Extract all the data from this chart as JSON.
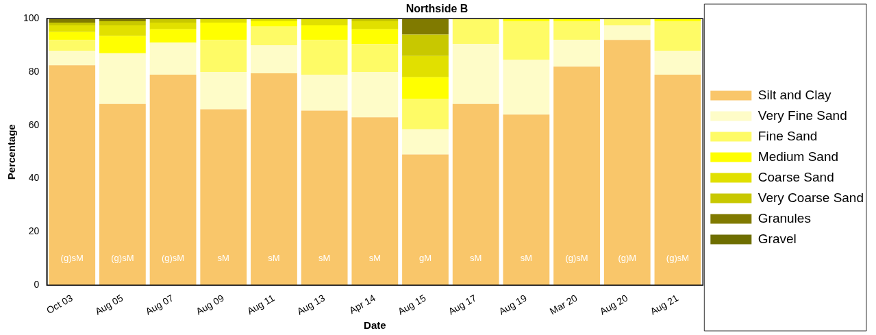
{
  "chart_data": {
    "type": "bar",
    "title": "Northside B",
    "xlabel": "Date",
    "ylabel": "Percentage",
    "categories": [
      "Oct 03",
      "Aug 05",
      "Aug 07",
      "Aug 09",
      "Aug 11",
      "Aug 13",
      "Apr 14",
      "Aug 15",
      "Aug 17",
      "Aug 19",
      "Mar 20",
      "Aug 20",
      "Aug 21"
    ],
    "stacked": true,
    "ylim": [
      0,
      100
    ],
    "yticks": [
      0,
      20,
      40,
      60,
      80,
      100
    ],
    "grid": false,
    "legend": "right",
    "series": [
      {
        "name": "Silt and Clay",
        "color": "#f9c66a",
        "values": [
          82.5,
          68,
          79,
          66,
          79.5,
          65.5,
          63,
          49,
          68,
          64,
          82,
          92,
          79
        ]
      },
      {
        "name": "Very Fine Sand",
        "color": "#fefcc8",
        "values": [
          5.5,
          19,
          12,
          14,
          10.5,
          13.5,
          17,
          9.5,
          22.5,
          20.5,
          10,
          5.5,
          9
        ]
      },
      {
        "name": "Fine Sand",
        "color": "#fefb66",
        "values": [
          4,
          0,
          0,
          12,
          7,
          13,
          10.5,
          11.5,
          9.5,
          14.5,
          7,
          2.5,
          11
        ]
      },
      {
        "name": "Medium Sand",
        "color": "#ffff00",
        "values": [
          3,
          6.5,
          5,
          6.5,
          2,
          5.5,
          5.5,
          8,
          0,
          1,
          1,
          0,
          1
        ]
      },
      {
        "name": "Coarse Sand",
        "color": "#e1e000",
        "values": [
          2.5,
          4,
          2.5,
          1.5,
          1,
          2.5,
          3,
          8,
          0,
          0,
          0,
          0,
          0
        ]
      },
      {
        "name": "Very Coarse Sand",
        "color": "#c8c800",
        "values": [
          1,
          1.5,
          1.5,
          0,
          0,
          0,
          1,
          8,
          0,
          0,
          0,
          0,
          0
        ]
      },
      {
        "name": "Granules",
        "color": "#807a00",
        "values": [
          1.5,
          1,
          0,
          0,
          0,
          0,
          0,
          6,
          0,
          0,
          0,
          0,
          0
        ]
      },
      {
        "name": "Gravel",
        "color": "#6e6e00",
        "values": [
          0,
          0,
          0,
          0,
          0,
          0,
          0,
          0,
          0,
          0,
          0,
          0,
          0
        ]
      }
    ],
    "annotations": [
      "(g)sM",
      "(g)sM",
      "(g)sM",
      "sM",
      "sM",
      "sM",
      "sM",
      "gM",
      "sM",
      "sM",
      "(g)sM",
      "(g)M",
      "(g)sM"
    ]
  }
}
